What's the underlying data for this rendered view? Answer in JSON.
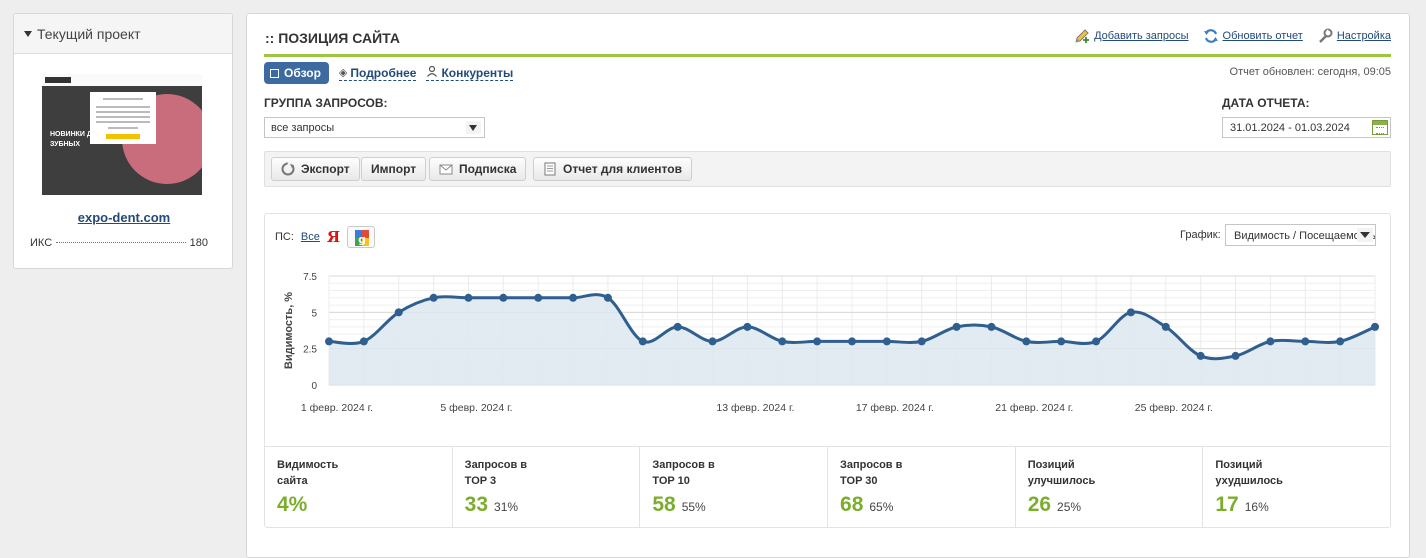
{
  "sidebar": {
    "title": "Текущий проект",
    "site": "expo-dent.com",
    "iks_label": "ИКС",
    "iks_value": "180",
    "thumbnail_text": "НОВИНКИ ДЛЯ ЗУБНЫХ"
  },
  "header": {
    "title": ":: ПОЗИЦИЯ САЙТА",
    "links": [
      "Добавить запросы",
      "Обновить отчет",
      "Настройка"
    ],
    "updated": "Отчет обновлен: сегодня, 09:05"
  },
  "tabs": [
    "Обзор",
    "Подробнее",
    "Конкуренты"
  ],
  "filters": {
    "group_label": "ГРУППА ЗАПРОСОВ:",
    "group_value": "все запросы",
    "date_label": "ДАТА ОТЧЕТА:",
    "date_value": "31.01.2024 - 01.03.2024"
  },
  "toolbar": [
    "Экспорт",
    "Импорт",
    "Подписка",
    "Отчет для клиентов"
  ],
  "engines": {
    "label": "ПС:",
    "all": "Все",
    "yandex": "Я"
  },
  "graph_select": {
    "label": "График:",
    "value": "Видимость / Посещаемость"
  },
  "chart_data": {
    "type": "area",
    "ylabel": "Видимость, %",
    "ylim": [
      0,
      7.5
    ],
    "yticks": [
      "0",
      "2.5",
      "5",
      "7.5"
    ],
    "x_tick_labels": [
      {
        "index": 0,
        "label": "1 февр. 2024 г."
      },
      {
        "index": 4,
        "label": "5 февр. 2024 г."
      },
      {
        "index": 12,
        "label": "13 февр. 2024 г."
      },
      {
        "index": 16,
        "label": "17 февр. 2024 г."
      },
      {
        "index": 20,
        "label": "21 февр. 2024 г."
      },
      {
        "index": 24,
        "label": "25 февр. 2024 г."
      }
    ],
    "values": [
      3,
      3,
      5,
      6,
      6,
      6,
      6,
      6,
      6,
      3,
      4,
      3,
      4,
      3,
      3,
      3,
      3,
      3,
      4,
      4,
      3,
      3,
      3,
      5,
      4,
      2,
      2,
      3,
      3,
      3,
      4
    ],
    "line_color": "#2f5f8f",
    "fill_color": "#dde6f0"
  },
  "stats": [
    {
      "label": "Видимость\nсайта",
      "value": "4%",
      "pct": ""
    },
    {
      "label": "Запросов в\nTOP 3",
      "value": "33",
      "pct": "31%"
    },
    {
      "label": "Запросов в\nTOP 10",
      "value": "58",
      "pct": "55%"
    },
    {
      "label": "Запросов в\nTOP 30",
      "value": "68",
      "pct": "65%"
    },
    {
      "label": "Позиций\nулучшилось",
      "value": "26",
      "pct": "25%"
    },
    {
      "label": "Позиций\nухудшилось",
      "value": "17",
      "pct": "16%"
    }
  ],
  "colors": {
    "accent_line": "#9cc642",
    "stat_value": "#7cae2e",
    "tab_active": "#3d6aa0"
  }
}
